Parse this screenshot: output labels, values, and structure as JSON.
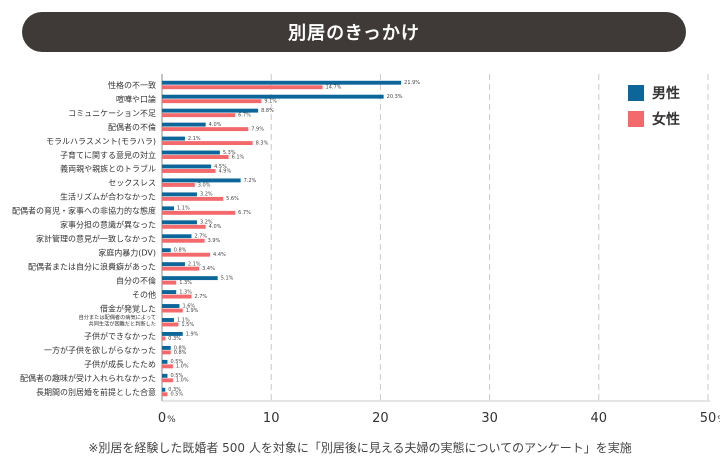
{
  "header": {
    "title": "別居のきっかけ"
  },
  "chart_data": {
    "type": "bar",
    "orientation": "horizontal",
    "title": "別居のきっかけ",
    "categories": [
      "性格の不一致",
      "喧嘩や口論",
      "コミュニケーション不足",
      "配偶者の不倫",
      "モラルハラスメント(モラハラ)",
      "子育てに関する意見の対立",
      "義両親や親族とのトラブル",
      "セックスレス",
      "生活リズムが合わなかった",
      "配偶者の育児・家事への非協力的な態度",
      "家事分担の意識が異なった",
      "家計管理の意見が一致しなかった",
      "家庭内暴力(DV)",
      "配偶者または自分に浪費癖があった",
      "自分の不倫",
      "その他",
      "借金が発覚した",
      "自分または配偶者の病気によって共同生活が困難だと判断した",
      "子供ができなかった",
      "一方が子供を欲しがらなかった",
      "子供が成長したため",
      "配偶者の趣味が受け入れられなかった",
      "長期間の別居婚を前提とした合意"
    ],
    "category_display": {
      "自分または配偶者の病気によって共同生活が困難だと判断した": [
        "自分または配偶者の病気によって",
        "共同生活が困難だと判断した"
      ]
    },
    "series": [
      {
        "name": "男性",
        "color": "#0d6699",
        "values": [
          21.9,
          20.3,
          8.8,
          4.0,
          2.1,
          5.3,
          4.5,
          7.2,
          3.2,
          1.1,
          3.2,
          2.7,
          0.8,
          2.1,
          5.1,
          1.3,
          1.6,
          1.1,
          1.9,
          0.8,
          0.5,
          0.5,
          0.3
        ],
        "labels": [
          "21.9%",
          "20.3%",
          "8.8%",
          "4.0%",
          "2.1%",
          "5.3%",
          "4.5%",
          "7.2%",
          "3.2%",
          "1.1%",
          "3.2%",
          "2.7%",
          "0.8%",
          "2.1%",
          "5.1%",
          "1.3%",
          "1.6%",
          "1.1%",
          "1.9%",
          "0.8%",
          "0.5%",
          "0.5%",
          "0.3%"
        ]
      },
      {
        "name": "女性",
        "color": "#f4696b",
        "values": [
          14.7,
          9.1,
          6.7,
          7.9,
          8.3,
          6.1,
          4.9,
          3.0,
          5.6,
          6.7,
          4.0,
          3.9,
          4.4,
          3.4,
          1.3,
          2.7,
          1.9,
          1.5,
          0.3,
          0.8,
          1.0,
          1.0,
          0.5
        ],
        "labels": [
          "14.7%",
          "9.1%",
          "6.7%",
          "7.9%",
          "8.3%",
          "6.1%",
          "4.9%",
          "3.0%",
          "5.6%",
          "6.7%",
          "4.0%",
          "3.9%",
          "4.4%",
          "3.4%",
          "1.3%",
          "2.7%",
          "1.9%",
          "1.5%",
          "0.3%",
          "0.8%",
          "1.0%",
          "1.0%",
          "0.5%"
        ]
      }
    ],
    "xlim": [
      0,
      50
    ],
    "xticks": [
      "0",
      "10",
      "20",
      "30",
      "40",
      "50"
    ],
    "x_unit": "%",
    "grid": true,
    "legend_position": "top-right"
  },
  "footnote": "※別居を経験した既婚者 500 人を対象に「別居後に見える夫婦の実態についてのアンケート」を実施"
}
